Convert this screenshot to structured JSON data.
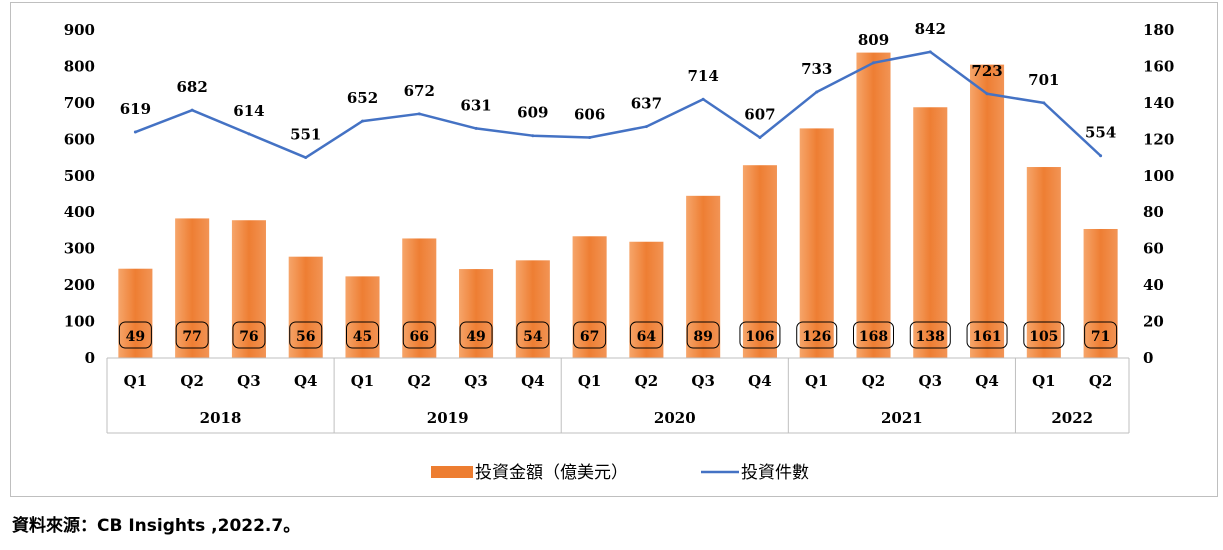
{
  "chart_data": {
    "type": "bar+line",
    "categories": [
      "Q1",
      "Q2",
      "Q3",
      "Q4",
      "Q1",
      "Q2",
      "Q3",
      "Q4",
      "Q1",
      "Q2",
      "Q3",
      "Q4",
      "Q1",
      "Q2",
      "Q3",
      "Q4",
      "Q1",
      "Q2"
    ],
    "groups": [
      {
        "label": "2018",
        "count": 4
      },
      {
        "label": "2019",
        "count": 4
      },
      {
        "label": "2020",
        "count": 4
      },
      {
        "label": "2021",
        "count": 4
      },
      {
        "label": "2022",
        "count": 2
      }
    ],
    "series": [
      {
        "name": "投資金額（億美元）",
        "type": "bar",
        "axis": "left",
        "color": "#ed7d31",
        "values": [
          245,
          383,
          378,
          278,
          224,
          328,
          244,
          268,
          334,
          319,
          445,
          529,
          630,
          838,
          688,
          805,
          524,
          354
        ]
      },
      {
        "name": "投資件數",
        "type": "line",
        "axis": "right",
        "color": "#4472c4",
        "values": [
          124,
          136,
          123,
          110,
          130,
          134,
          126,
          122,
          121,
          127,
          142,
          121,
          146,
          162,
          168,
          145,
          140,
          111
        ]
      }
    ],
    "bar_labels": [
      "49",
      "77",
      "76",
      "56",
      "45",
      "66",
      "49",
      "54",
      "67",
      "64",
      "89",
      "106",
      "126",
      "168",
      "138",
      "161",
      "105",
      "71"
    ],
    "line_labels": [
      "619",
      "682",
      "614",
      "551",
      "652",
      "672",
      "631",
      "609",
      "606",
      "637",
      "714",
      "607",
      "733",
      "809",
      "842",
      "723",
      "701",
      "554"
    ],
    "y_left": {
      "min": 0,
      "max": 900,
      "ticks": [
        "0",
        "100",
        "200",
        "300",
        "400",
        "500",
        "600",
        "700",
        "800",
        "900"
      ]
    },
    "y_right": {
      "min": 0,
      "max": 180,
      "ticks": [
        "0",
        "20",
        "40",
        "60",
        "80",
        "100",
        "120",
        "140",
        "160",
        "180"
      ]
    },
    "legend_placement": "bottom-center",
    "grid": false
  },
  "source_text": "資料來源：CB Insights ,2022.7。"
}
